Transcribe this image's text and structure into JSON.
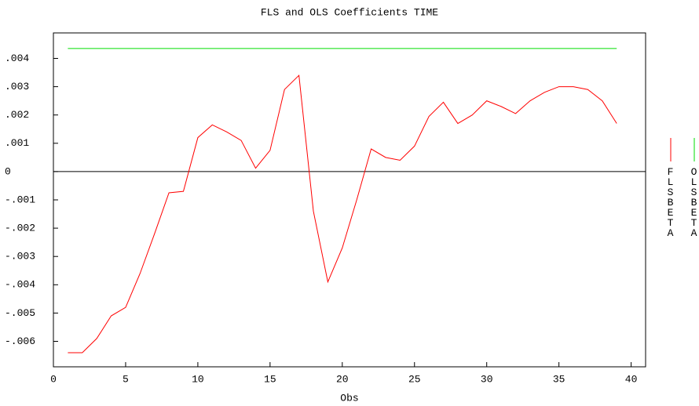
{
  "chart_data": {
    "type": "line",
    "title": "FLS and OLS Coefficients TIME",
    "x_label": "Obs",
    "x": [
      1,
      2,
      3,
      4,
      5,
      6,
      7,
      8,
      9,
      10,
      11,
      12,
      13,
      14,
      15,
      16,
      17,
      18,
      19,
      20,
      21,
      22,
      23,
      24,
      25,
      26,
      27,
      28,
      29,
      30,
      31,
      32,
      33,
      34,
      35,
      36,
      37,
      38,
      39
    ],
    "series": [
      {
        "name": "FLSBETA",
        "color": "#ff0000",
        "values": [
          -0.0064,
          -0.0064,
          -0.0059,
          -0.0051,
          -0.0048,
          -0.0036,
          -0.0022,
          -0.00075,
          -0.0007,
          0.0012,
          0.00165,
          0.0014,
          0.0011,
          0.00012,
          0.00075,
          0.0029,
          0.0034,
          -0.0014,
          -0.0039,
          -0.0027,
          -0.001,
          0.0008,
          0.0005,
          0.0004,
          0.0009,
          0.00195,
          0.00245,
          0.0017,
          0.002,
          0.0025,
          0.0023,
          0.00205,
          0.0025,
          0.0028,
          0.003,
          0.003,
          0.0029,
          0.0025,
          0.0017
        ]
      },
      {
        "name": "OLSBETA",
        "color": "#00dd00",
        "values": [
          0.00435,
          0.00435,
          0.00435,
          0.00435,
          0.00435,
          0.00435,
          0.00435,
          0.00435,
          0.00435,
          0.00435,
          0.00435,
          0.00435,
          0.00435,
          0.00435,
          0.00435,
          0.00435,
          0.00435,
          0.00435,
          0.00435,
          0.00435,
          0.00435,
          0.00435,
          0.00435,
          0.00435,
          0.00435,
          0.00435,
          0.00435,
          0.00435,
          0.00435,
          0.00435,
          0.00435,
          0.00435,
          0.00435,
          0.00435,
          0.00435,
          0.00435,
          0.00435,
          0.00435,
          0.00435
        ]
      }
    ],
    "xlim": [
      0,
      41
    ],
    "xticks": [
      0,
      5,
      10,
      15,
      20,
      25,
      30,
      35,
      40
    ],
    "ylim": [
      -0.0069,
      0.0049
    ],
    "yticks": [
      {
        "value": -0.006,
        "label": "-.006"
      },
      {
        "value": -0.005,
        "label": "-.005"
      },
      {
        "value": -0.004,
        "label": "-.004"
      },
      {
        "value": -0.003,
        "label": "-.003"
      },
      {
        "value": -0.002,
        "label": "-.002"
      },
      {
        "value": -0.001,
        "label": "-.001"
      },
      0,
      {
        "value": 0.001,
        "label": ".001"
      },
      {
        "value": 0.002,
        "label": ".002"
      },
      {
        "value": 0.003,
        "label": ".003"
      },
      {
        "value": 0.004,
        "label": ".004"
      }
    ]
  }
}
